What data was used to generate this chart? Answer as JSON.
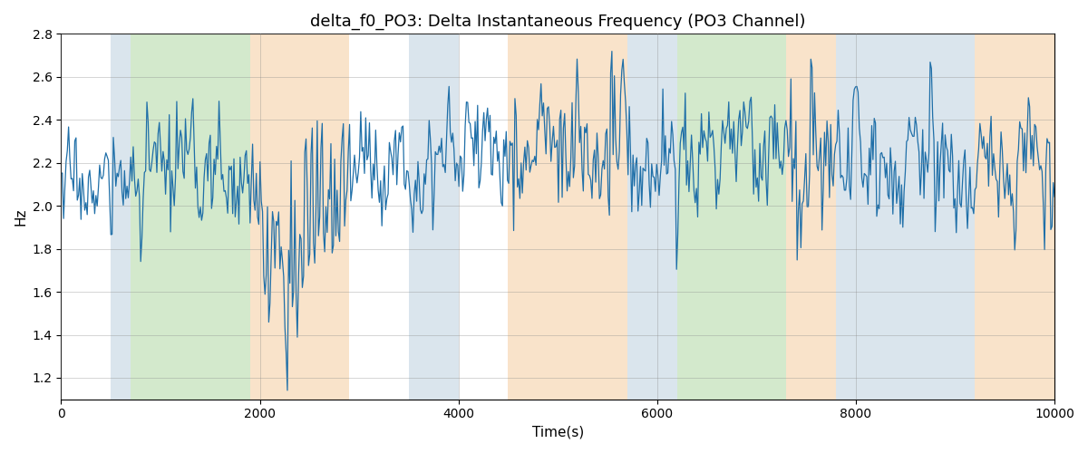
{
  "title": "delta_f0_PO3: Delta Instantaneous Frequency (PO3 Channel)",
  "xlabel": "Time(s)",
  "ylabel": "Hz",
  "xlim": [
    0,
    10000
  ],
  "ylim": [
    1.1,
    2.8
  ],
  "yticks": [
    1.2,
    1.4,
    1.6,
    1.8,
    2.0,
    2.2,
    2.4,
    2.6,
    2.8
  ],
  "xticks": [
    0,
    2000,
    4000,
    6000,
    8000,
    10000
  ],
  "bg_regions": [
    {
      "start": 500,
      "end": 700,
      "color": "#aec6d8",
      "alpha": 0.45
    },
    {
      "start": 700,
      "end": 1900,
      "color": "#a8d49a",
      "alpha": 0.5
    },
    {
      "start": 1900,
      "end": 2900,
      "color": "#f5c896",
      "alpha": 0.5
    },
    {
      "start": 3500,
      "end": 4000,
      "color": "#aec6d8",
      "alpha": 0.45
    },
    {
      "start": 4500,
      "end": 5700,
      "color": "#f5c896",
      "alpha": 0.5
    },
    {
      "start": 5700,
      "end": 6200,
      "color": "#aec6d8",
      "alpha": 0.45
    },
    {
      "start": 6200,
      "end": 7300,
      "color": "#a8d49a",
      "alpha": 0.5
    },
    {
      "start": 7300,
      "end": 7800,
      "color": "#f5c896",
      "alpha": 0.5
    },
    {
      "start": 7800,
      "end": 9200,
      "color": "#aec6d8",
      "alpha": 0.45
    },
    {
      "start": 9200,
      "end": 10000,
      "color": "#f5c896",
      "alpha": 0.5
    }
  ],
  "line_color": "#1f6fa8",
  "line_width": 0.9,
  "grid_color": "#888888",
  "grid_alpha": 0.4,
  "seed": 17,
  "n_points": 800,
  "title_fontsize": 13,
  "figsize": [
    12.0,
    5.0
  ],
  "dpi": 100
}
